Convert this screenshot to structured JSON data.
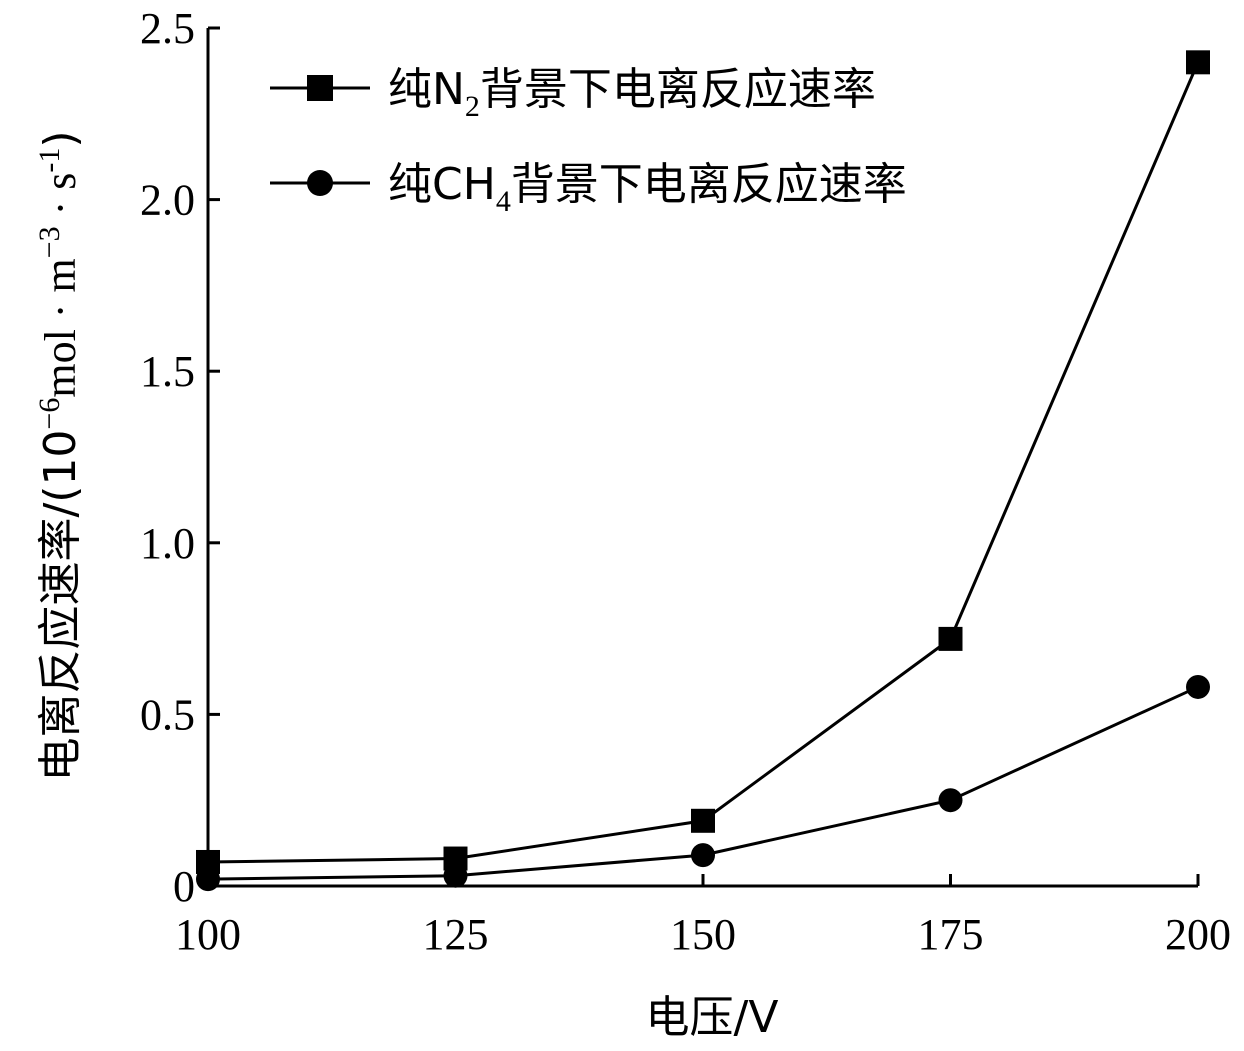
{
  "chart_data": {
    "type": "line",
    "x": [
      100,
      125,
      150,
      175,
      200
    ],
    "xlim": [
      100,
      200
    ],
    "ylim": [
      0,
      2.5
    ],
    "x_ticks": [
      "100",
      "125",
      "150",
      "175",
      "200"
    ],
    "y_ticks": [
      "0",
      "0.5",
      "1.0",
      "1.5",
      "2.0",
      "2.5"
    ],
    "xlabel": "电压/V",
    "ylabel": {
      "prefix": "电离反应速率/(10",
      "exp1": "−6",
      "mid1": "mol · m",
      "exp2": "−3",
      "mid2": " · s",
      "exp3": "-1",
      "suffix": ")"
    },
    "grid": false,
    "legend_position": "top-left",
    "series": [
      {
        "name": "纯N2背景下电离反应速率",
        "legend": {
          "pre": "纯N",
          "sub": "2",
          "post": "背景下电离反应速率"
        },
        "marker": "square",
        "color": "#000000",
        "values": [
          0.07,
          0.08,
          0.19,
          0.72,
          2.4
        ]
      },
      {
        "name": "纯CH4背景下电离反应速率",
        "legend": {
          "pre": "纯CH",
          "sub": "4",
          "post": "背景下电离反应速率"
        },
        "marker": "circle",
        "color": "#000000",
        "values": [
          0.02,
          0.03,
          0.09,
          0.25,
          0.58
        ]
      }
    ]
  }
}
